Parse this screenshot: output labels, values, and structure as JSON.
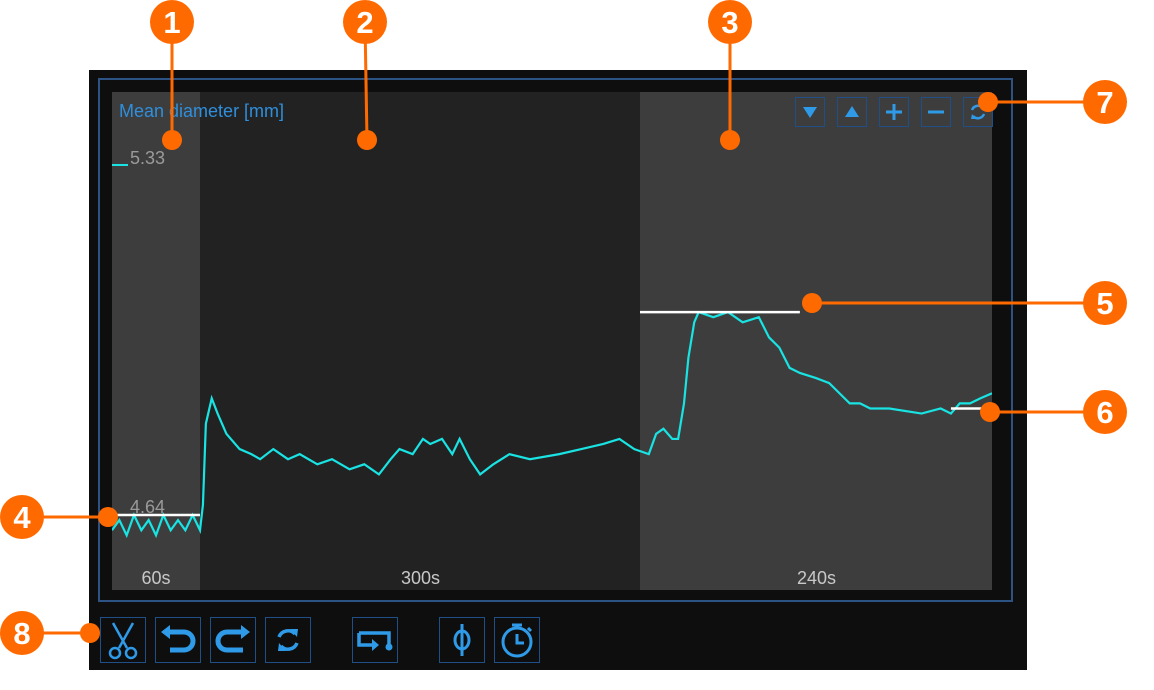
{
  "chart": {
    "title": "Mean diameter [mm]",
    "y_labels": {
      "max": "5.33",
      "min": "4.64"
    },
    "y_range_mm": [
      4.64,
      5.33
    ],
    "x_range_s": [
      0,
      600
    ],
    "segments": [
      {
        "label": "60s",
        "start_s": 0,
        "end_s": 60,
        "color": "#3d3d3d"
      },
      {
        "label": "300s",
        "start_s": 60,
        "end_s": 360,
        "color": "#222222"
      },
      {
        "label": "240s",
        "start_s": 360,
        "end_s": 600,
        "color": "#3d3d3d"
      }
    ],
    "trace_color": "#19e3e3",
    "trace": [
      [
        0,
        4.61
      ],
      [
        5,
        4.63
      ],
      [
        10,
        4.6
      ],
      [
        15,
        4.64
      ],
      [
        20,
        4.61
      ],
      [
        25,
        4.63
      ],
      [
        30,
        4.6
      ],
      [
        35,
        4.64
      ],
      [
        40,
        4.61
      ],
      [
        45,
        4.63
      ],
      [
        50,
        4.61
      ],
      [
        55,
        4.64
      ],
      [
        60,
        4.61
      ],
      [
        62,
        4.66
      ],
      [
        64,
        4.82
      ],
      [
        68,
        4.87
      ],
      [
        72,
        4.84
      ],
      [
        78,
        4.8
      ],
      [
        87,
        4.77
      ],
      [
        95,
        4.76
      ],
      [
        101,
        4.75
      ],
      [
        110,
        4.77
      ],
      [
        120,
        4.75
      ],
      [
        128,
        4.76
      ],
      [
        140,
        4.74
      ],
      [
        150,
        4.75
      ],
      [
        162,
        4.73
      ],
      [
        172,
        4.74
      ],
      [
        182,
        4.72
      ],
      [
        190,
        4.75
      ],
      [
        196,
        4.77
      ],
      [
        205,
        4.76
      ],
      [
        212,
        4.79
      ],
      [
        217,
        4.78
      ],
      [
        225,
        4.79
      ],
      [
        232,
        4.76
      ],
      [
        237,
        4.79
      ],
      [
        244,
        4.75
      ],
      [
        251,
        4.72
      ],
      [
        260,
        4.74
      ],
      [
        271,
        4.76
      ],
      [
        285,
        4.75
      ],
      [
        305,
        4.76
      ],
      [
        320,
        4.77
      ],
      [
        335,
        4.78
      ],
      [
        346,
        4.79
      ],
      [
        356,
        4.77
      ],
      [
        366,
        4.76
      ],
      [
        371,
        4.8
      ],
      [
        376,
        4.81
      ],
      [
        382,
        4.79
      ],
      [
        386,
        4.79
      ],
      [
        390,
        4.86
      ],
      [
        393,
        4.95
      ],
      [
        397,
        5.02
      ],
      [
        400,
        5.04
      ],
      [
        410,
        5.03
      ],
      [
        420,
        5.04
      ],
      [
        430,
        5.02
      ],
      [
        441,
        5.03
      ],
      [
        448,
        4.99
      ],
      [
        455,
        4.97
      ],
      [
        462,
        4.93
      ],
      [
        469,
        4.92
      ],
      [
        480,
        4.91
      ],
      [
        489,
        4.9
      ],
      [
        496,
        4.88
      ],
      [
        503,
        4.86
      ],
      [
        510,
        4.86
      ],
      [
        517,
        4.85
      ],
      [
        530,
        4.85
      ],
      [
        552,
        4.84
      ],
      [
        565,
        4.85
      ],
      [
        572,
        4.84
      ],
      [
        578,
        4.86
      ],
      [
        585,
        4.86
      ],
      [
        592,
        4.87
      ],
      [
        600,
        4.88
      ]
    ],
    "reference_lines": [
      {
        "start_s": 0,
        "end_s": 60,
        "value_mm": 4.64
      },
      {
        "start_s": 360,
        "end_s": 469,
        "value_mm": 5.04
      },
      {
        "start_s": 572,
        "end_s": 595,
        "value_mm": 4.85
      }
    ]
  },
  "chart_toolbar": [
    {
      "icon": "triangle-down-icon",
      "name": "scale-down-button"
    },
    {
      "icon": "triangle-up-icon",
      "name": "scale-up-button"
    },
    {
      "icon": "plus-icon",
      "name": "zoom-in-button"
    },
    {
      "icon": "minus-icon",
      "name": "zoom-out-button"
    },
    {
      "icon": "refresh-icon",
      "name": "reset-button"
    }
  ],
  "bottom_toolbar": [
    {
      "icon": "scissors-icon",
      "name": "cut-button"
    },
    {
      "icon": "undo-icon",
      "name": "undo-button"
    },
    {
      "icon": "redo-icon",
      "name": "redo-button"
    },
    {
      "icon": "refresh-icon",
      "name": "refresh-button"
    },
    {
      "icon": "step-icon",
      "name": "step-button"
    },
    {
      "icon": "diameter-icon",
      "name": "diameter-button"
    },
    {
      "icon": "stopwatch-icon",
      "name": "timer-button"
    }
  ],
  "callouts": [
    "1",
    "2",
    "3",
    "4",
    "5",
    "6",
    "7",
    "8"
  ],
  "colors": {
    "accent": "#2f8fdc",
    "callout": "#ff6a00",
    "trace": "#19e3e3"
  }
}
